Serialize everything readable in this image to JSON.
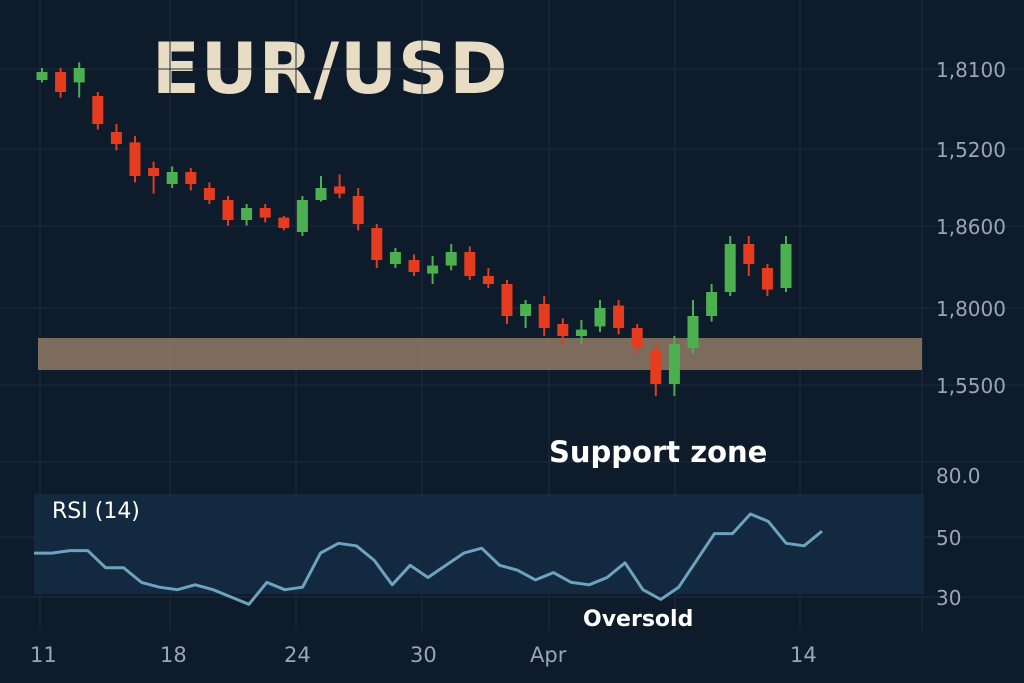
{
  "chart_data": {
    "title": "EUR/USD",
    "type": "candlestick",
    "price_ticks": [
      "1,8100",
      "1,5200",
      "1,8600",
      "1,8000",
      "1,5500"
    ],
    "x_ticks": [
      "11",
      "18",
      "24",
      "30",
      "Apr",
      "14"
    ],
    "candles": [
      {
        "o": 0.0,
        "c": 0.1,
        "h": 0.15,
        "l": -0.03
      },
      {
        "o": 0.1,
        "c": -0.15,
        "h": 0.15,
        "l": -0.22
      },
      {
        "o": -0.03,
        "c": 0.15,
        "h": 0.22,
        "l": -0.22
      },
      {
        "o": -0.2,
        "c": -0.55,
        "h": -0.15,
        "l": -0.62
      },
      {
        "o": -0.65,
        "c": -0.8,
        "h": -0.55,
        "l": -0.88
      },
      {
        "o": -0.78,
        "c": -1.2,
        "h": -0.7,
        "l": -1.28
      },
      {
        "o": -1.1,
        "c": -1.2,
        "h": -1.02,
        "l": -1.42
      },
      {
        "o": -1.3,
        "c": -1.15,
        "h": -1.08,
        "l": -1.35
      },
      {
        "o": -1.15,
        "c": -1.3,
        "h": -1.1,
        "l": -1.38
      },
      {
        "o": -1.35,
        "c": -1.5,
        "h": -1.28,
        "l": -1.55
      },
      {
        "o": -1.5,
        "c": -1.75,
        "h": -1.45,
        "l": -1.82
      },
      {
        "o": -1.75,
        "c": -1.6,
        "h": -1.55,
        "l": -1.82
      },
      {
        "o": -1.6,
        "c": -1.72,
        "h": -1.55,
        "l": -1.78
      },
      {
        "o": -1.72,
        "c": -1.85,
        "h": -1.7,
        "l": -1.88
      },
      {
        "o": -1.9,
        "c": -1.5,
        "h": -1.45,
        "l": -1.95
      },
      {
        "o": -1.5,
        "c": -1.35,
        "h": -1.2,
        "l": -1.52
      },
      {
        "o": -1.33,
        "c": -1.42,
        "h": -1.18,
        "l": -1.48
      },
      {
        "o": -1.45,
        "c": -1.8,
        "h": -1.35,
        "l": -1.88
      },
      {
        "o": -1.85,
        "c": -2.25,
        "h": -1.8,
        "l": -2.35
      },
      {
        "o": -2.3,
        "c": -2.15,
        "h": -2.1,
        "l": -2.35
      },
      {
        "o": -2.25,
        "c": -2.4,
        "h": -2.18,
        "l": -2.45
      },
      {
        "o": -2.42,
        "c": -2.32,
        "h": -2.2,
        "l": -2.55
      },
      {
        "o": -2.32,
        "c": -2.15,
        "h": -2.05,
        "l": -2.38
      },
      {
        "o": -2.15,
        "c": -2.45,
        "h": -2.08,
        "l": -2.5
      },
      {
        "o": -2.45,
        "c": -2.55,
        "h": -2.35,
        "l": -2.6
      },
      {
        "o": -2.55,
        "c": -2.95,
        "h": -2.5,
        "l": -3.05
      },
      {
        "o": -2.95,
        "c": -2.8,
        "h": -2.75,
        "l": -3.1
      },
      {
        "o": -2.8,
        "c": -3.1,
        "h": -2.7,
        "l": -3.2
      },
      {
        "o": -3.05,
        "c": -3.2,
        "h": -2.98,
        "l": -3.3
      },
      {
        "o": -3.2,
        "c": -3.12,
        "h": -3.0,
        "l": -3.3
      },
      {
        "o": -3.08,
        "c": -2.85,
        "h": -2.75,
        "l": -3.15
      },
      {
        "o": -2.82,
        "c": -3.1,
        "h": -2.75,
        "l": -3.18
      },
      {
        "o": -3.1,
        "c": -3.35,
        "h": -3.05,
        "l": -3.42
      },
      {
        "o": -3.38,
        "c": -3.8,
        "h": -3.3,
        "l": -3.95
      },
      {
        "o": -3.8,
        "c": -3.3,
        "h": -3.2,
        "l": -3.95
      },
      {
        "o": -3.35,
        "c": -2.95,
        "h": -2.75,
        "l": -3.42
      },
      {
        "o": -2.95,
        "c": -2.65,
        "h": -2.55,
        "l": -3.02
      },
      {
        "o": -2.65,
        "c": -2.05,
        "h": -1.95,
        "l": -2.7
      },
      {
        "o": -2.05,
        "c": -2.3,
        "h": -1.95,
        "l": -2.45
      },
      {
        "o": -2.35,
        "c": -2.62,
        "h": -2.3,
        "l": -2.7
      },
      {
        "o": -2.6,
        "c": -2.05,
        "h": -1.95,
        "l": -2.65
      }
    ],
    "support_zone": {
      "low": -3.55,
      "high": -3.2
    },
    "annotations": [
      "Support zone",
      "Oversold"
    ],
    "rsi": {
      "label": "RSI (14)",
      "ticks": [
        "80.0",
        "50",
        "30"
      ],
      "values": [
        48,
        48,
        49,
        49,
        42,
        42,
        36,
        34,
        33,
        35,
        33,
        30,
        27,
        36,
        33,
        34,
        48,
        52,
        51,
        45,
        35,
        43,
        38,
        43,
        48,
        50,
        43,
        41,
        37,
        40,
        36,
        35,
        38,
        44,
        33,
        29,
        34,
        45,
        56,
        56,
        64,
        61,
        52,
        51,
        57
      ]
    },
    "colors": {
      "background": "#0d1b2a",
      "bull": "#4caf50",
      "bear": "#e53b1f",
      "support": "#8a7660",
      "rsi_line": "#6ea2be",
      "rsi_panel": "#142c44",
      "axis_text": "#9aa6b2",
      "title": "#e9dcc4",
      "annotation": "#ffffff"
    }
  }
}
